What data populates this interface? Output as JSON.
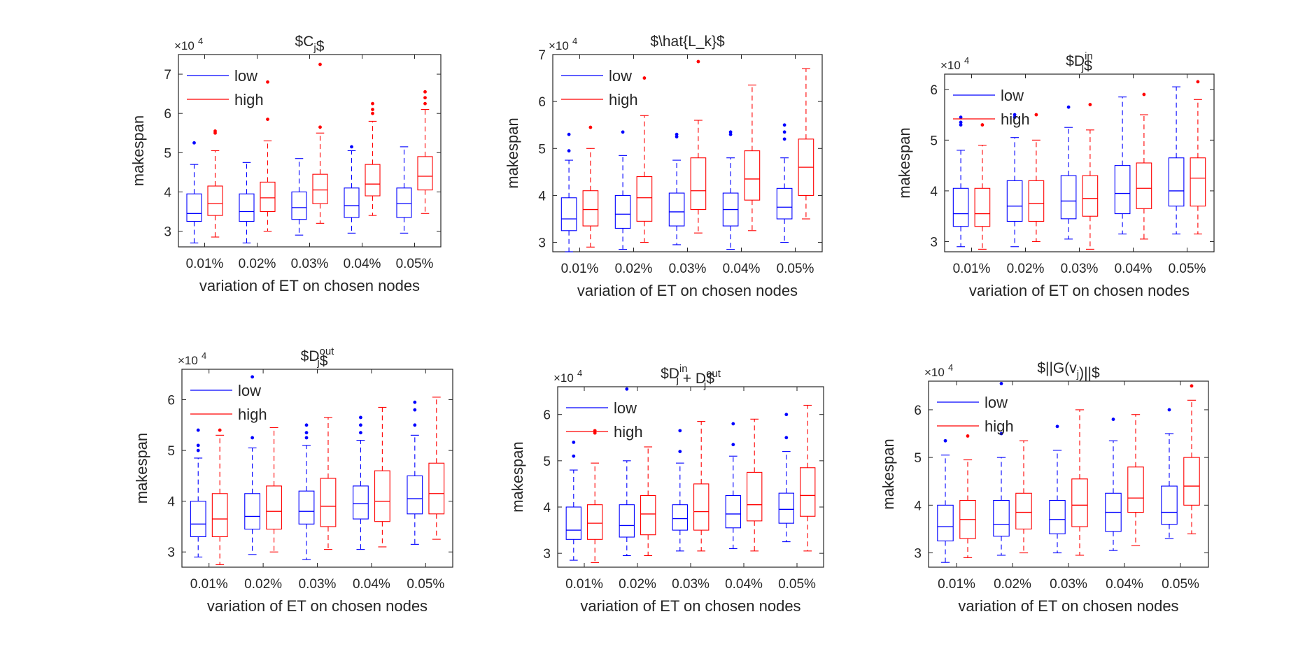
{
  "figure": {
    "colors": {
      "low": "#0000ff",
      "high": "#ff0000",
      "axis": "#262626"
    }
  },
  "chart_data": [
    {
      "type": "boxplot",
      "title": "$C_j$",
      "title_base": "$C",
      "title_sub": "j",
      "title_sup": "",
      "title_end": "$",
      "xlabel": "variation of ET on chosen nodes",
      "ylabel": "makespan",
      "exponent_label": "×10",
      "exponent_power": "4",
      "categories": [
        "0.01%",
        "0.02%",
        "0.03%",
        "0.04%",
        "0.05%"
      ],
      "ylim": [
        2.6,
        7.5
      ],
      "yticks": [
        3,
        4,
        5,
        6,
        7
      ],
      "legend": {
        "placement": "top-left",
        "entries": [
          "low",
          "high"
        ]
      },
      "series": [
        {
          "name": "low",
          "boxes": [
            {
              "min": 2.7,
              "q1": 3.25,
              "median": 3.45,
              "q3": 3.95,
              "max": 4.7,
              "outliers": [
                5.25
              ]
            },
            {
              "min": 2.7,
              "q1": 3.25,
              "median": 3.5,
              "q3": 3.95,
              "max": 4.75,
              "outliers": []
            },
            {
              "min": 2.9,
              "q1": 3.3,
              "median": 3.6,
              "q3": 4.0,
              "max": 4.85,
              "outliers": []
            },
            {
              "min": 2.95,
              "q1": 3.35,
              "median": 3.65,
              "q3": 4.1,
              "max": 5.05,
              "outliers": [
                5.15
              ]
            },
            {
              "min": 2.95,
              "q1": 3.35,
              "median": 3.7,
              "q3": 4.1,
              "max": 5.15,
              "outliers": []
            }
          ]
        },
        {
          "name": "high",
          "boxes": [
            {
              "min": 2.85,
              "q1": 3.4,
              "median": 3.7,
              "q3": 4.15,
              "max": 5.05,
              "outliers": [
                5.5,
                5.55
              ]
            },
            {
              "min": 3.0,
              "q1": 3.5,
              "median": 3.85,
              "q3": 4.25,
              "max": 5.3,
              "outliers": [
                5.85,
                6.8
              ]
            },
            {
              "min": 3.2,
              "q1": 3.7,
              "median": 4.05,
              "q3": 4.45,
              "max": 5.5,
              "outliers": [
                5.65,
                7.25
              ]
            },
            {
              "min": 3.4,
              "q1": 3.9,
              "median": 4.2,
              "q3": 4.7,
              "max": 5.8,
              "outliers": [
                6.0,
                6.1,
                6.25
              ]
            },
            {
              "min": 3.45,
              "q1": 4.05,
              "median": 4.4,
              "q3": 4.9,
              "max": 6.1,
              "outliers": [
                6.25,
                6.4,
                6.55
              ]
            }
          ]
        }
      ]
    },
    {
      "type": "boxplot",
      "title": "$\\hat{L_k}$",
      "title_base": "$\\hat{L_k}$",
      "title_sub": "",
      "title_sup": "",
      "title_end": "",
      "xlabel": "variation of ET on chosen nodes",
      "ylabel": "makespan",
      "exponent_label": "×10",
      "exponent_power": "4",
      "categories": [
        "0.01%",
        "0.02%",
        "0.03%",
        "0.04%",
        "0.05%"
      ],
      "ylim": [
        2.8,
        7.0
      ],
      "yticks": [
        3,
        4,
        5,
        6,
        7
      ],
      "legend": {
        "placement": "top-left",
        "entries": [
          "low",
          "high"
        ]
      },
      "series": [
        {
          "name": "low",
          "boxes": [
            {
              "min": 2.8,
              "q1": 3.25,
              "median": 3.5,
              "q3": 3.95,
              "max": 4.75,
              "outliers": [
                4.95,
                5.3
              ]
            },
            {
              "min": 2.85,
              "q1": 3.3,
              "median": 3.6,
              "q3": 4.0,
              "max": 4.85,
              "outliers": [
                5.35
              ]
            },
            {
              "min": 2.95,
              "q1": 3.35,
              "median": 3.65,
              "q3": 4.05,
              "max": 4.75,
              "outliers": [
                5.25,
                5.3
              ]
            },
            {
              "min": 2.85,
              "q1": 3.35,
              "median": 3.7,
              "q3": 4.05,
              "max": 4.8,
              "outliers": [
                5.3,
                5.35
              ]
            },
            {
              "min": 3.0,
              "q1": 3.5,
              "median": 3.75,
              "q3": 4.15,
              "max": 4.8,
              "outliers": [
                5.2,
                5.35,
                5.5
              ]
            }
          ]
        },
        {
          "name": "high",
          "boxes": [
            {
              "min": 2.9,
              "q1": 3.35,
              "median": 3.7,
              "q3": 4.1,
              "max": 5.0,
              "outliers": [
                5.45
              ]
            },
            {
              "min": 3.0,
              "q1": 3.45,
              "median": 3.95,
              "q3": 4.4,
              "max": 5.7,
              "outliers": [
                6.5
              ]
            },
            {
              "min": 3.2,
              "q1": 3.7,
              "median": 4.1,
              "q3": 4.8,
              "max": 5.6,
              "outliers": [
                6.85
              ]
            },
            {
              "min": 3.25,
              "q1": 3.9,
              "median": 4.35,
              "q3": 4.95,
              "max": 6.35,
              "outliers": []
            },
            {
              "min": 3.5,
              "q1": 4.0,
              "median": 4.6,
              "q3": 5.2,
              "max": 6.7,
              "outliers": []
            }
          ]
        }
      ]
    },
    {
      "type": "boxplot",
      "title": "$D_j^{in}$",
      "title_base": "$D",
      "title_sub": "j",
      "title_sup": "in",
      "title_end": "$",
      "xlabel": "variation of ET on chosen nodes",
      "ylabel": "makespan",
      "exponent_label": "×10",
      "exponent_power": "4",
      "categories": [
        "0.01%",
        "0.02%",
        "0.03%",
        "0.04%",
        "0.05%"
      ],
      "ylim": [
        2.8,
        6.3
      ],
      "yticks": [
        3,
        4,
        5,
        6
      ],
      "legend": {
        "placement": "top-left",
        "entries": [
          "low",
          "high"
        ]
      },
      "series": [
        {
          "name": "low",
          "boxes": [
            {
              "min": 2.9,
              "q1": 3.3,
              "median": 3.55,
              "q3": 4.05,
              "max": 4.8,
              "outliers": [
                5.3,
                5.35,
                5.45
              ]
            },
            {
              "min": 2.9,
              "q1": 3.4,
              "median": 3.7,
              "q3": 4.2,
              "max": 5.05,
              "outliers": [
                5.45,
                5.5
              ]
            },
            {
              "min": 3.05,
              "q1": 3.45,
              "median": 3.8,
              "q3": 4.3,
              "max": 5.25,
              "outliers": [
                5.65
              ]
            },
            {
              "min": 3.15,
              "q1": 3.55,
              "median": 3.95,
              "q3": 4.5,
              "max": 5.85,
              "outliers": []
            },
            {
              "min": 3.15,
              "q1": 3.7,
              "median": 4.0,
              "q3": 4.65,
              "max": 6.05,
              "outliers": []
            }
          ]
        },
        {
          "name": "high",
          "boxes": [
            {
              "min": 2.85,
              "q1": 3.3,
              "median": 3.55,
              "q3": 4.05,
              "max": 4.9,
              "outliers": [
                5.3
              ]
            },
            {
              "min": 3.0,
              "q1": 3.4,
              "median": 3.75,
              "q3": 4.2,
              "max": 5.0,
              "outliers": [
                5.5
              ]
            },
            {
              "min": 2.85,
              "q1": 3.5,
              "median": 3.85,
              "q3": 4.3,
              "max": 5.2,
              "outliers": [
                5.7
              ]
            },
            {
              "min": 3.05,
              "q1": 3.65,
              "median": 4.05,
              "q3": 4.55,
              "max": 5.5,
              "outliers": [
                5.9
              ]
            },
            {
              "min": 3.15,
              "q1": 3.7,
              "median": 4.25,
              "q3": 4.65,
              "max": 5.8,
              "outliers": [
                6.15
              ]
            }
          ]
        }
      ]
    },
    {
      "type": "boxplot",
      "title": "$D_j^{out}$",
      "title_base": "$D",
      "title_sub": "j",
      "title_sup": "out",
      "title_end": "$",
      "xlabel": "variation of ET on chosen nodes",
      "ylabel": "makespan",
      "exponent_label": "×10",
      "exponent_power": "4",
      "categories": [
        "0.01%",
        "0.02%",
        "0.03%",
        "0.04%",
        "0.05%"
      ],
      "ylim": [
        2.7,
        6.6
      ],
      "yticks": [
        3,
        4,
        5,
        6
      ],
      "legend": {
        "placement": "top-left",
        "entries": [
          "low",
          "high"
        ]
      },
      "series": [
        {
          "name": "low",
          "boxes": [
            {
              "min": 2.9,
              "q1": 3.3,
              "median": 3.55,
              "q3": 4.0,
              "max": 4.85,
              "outliers": [
                5.0,
                5.1,
                5.4
              ]
            },
            {
              "min": 2.95,
              "q1": 3.45,
              "median": 3.7,
              "q3": 4.15,
              "max": 5.05,
              "outliers": [
                5.25,
                6.45
              ]
            },
            {
              "min": 2.85,
              "q1": 3.55,
              "median": 3.8,
              "q3": 4.2,
              "max": 5.1,
              "outliers": [
                5.25,
                5.35,
                5.5
              ]
            },
            {
              "min": 3.05,
              "q1": 3.65,
              "median": 3.95,
              "q3": 4.3,
              "max": 5.2,
              "outliers": [
                5.35,
                5.5,
                5.65
              ]
            },
            {
              "min": 3.15,
              "q1": 3.75,
              "median": 4.05,
              "q3": 4.5,
              "max": 5.3,
              "outliers": [
                5.5,
                5.8,
                5.95
              ]
            }
          ]
        },
        {
          "name": "high",
          "boxes": [
            {
              "min": 2.75,
              "q1": 3.3,
              "median": 3.65,
              "q3": 4.15,
              "max": 5.3,
              "outliers": [
                5.4
              ]
            },
            {
              "min": 3.0,
              "q1": 3.45,
              "median": 3.8,
              "q3": 4.3,
              "max": 5.45,
              "outliers": []
            },
            {
              "min": 3.05,
              "q1": 3.5,
              "median": 3.9,
              "q3": 4.45,
              "max": 5.65,
              "outliers": []
            },
            {
              "min": 3.1,
              "q1": 3.6,
              "median": 4.0,
              "q3": 4.6,
              "max": 5.85,
              "outliers": []
            },
            {
              "min": 3.25,
              "q1": 3.75,
              "median": 4.15,
              "q3": 4.75,
              "max": 6.05,
              "outliers": []
            }
          ]
        }
      ]
    },
    {
      "type": "boxplot",
      "title": "$D_j^{in} + D_j^{out}$",
      "title_base": "$D",
      "title_sub": "j",
      "title_sup": "in",
      "title_end": " + D",
      "title_sub2": "j",
      "title_sup2": "out",
      "title_end2": "$",
      "xlabel": "variation of ET on chosen nodes",
      "ylabel": "makespan",
      "exponent_label": "×10",
      "exponent_power": "4",
      "categories": [
        "0.01%",
        "0.02%",
        "0.03%",
        "0.04%",
        "0.05%"
      ],
      "ylim": [
        2.7,
        6.6
      ],
      "yticks": [
        3,
        4,
        5,
        6
      ],
      "legend": {
        "placement": "top-left",
        "entries": [
          "low",
          "high"
        ]
      },
      "series": [
        {
          "name": "low",
          "boxes": [
            {
              "min": 2.85,
              "q1": 3.3,
              "median": 3.5,
              "q3": 4.0,
              "max": 4.8,
              "outliers": [
                5.1,
                5.4
              ]
            },
            {
              "min": 2.95,
              "q1": 3.35,
              "median": 3.6,
              "q3": 4.05,
              "max": 5.0,
              "outliers": [
                6.55
              ]
            },
            {
              "min": 3.05,
              "q1": 3.5,
              "median": 3.75,
              "q3": 4.05,
              "max": 4.95,
              "outliers": [
                5.2,
                5.65
              ]
            },
            {
              "min": 3.1,
              "q1": 3.55,
              "median": 3.85,
              "q3": 4.25,
              "max": 5.1,
              "outliers": [
                5.35,
                5.8
              ]
            },
            {
              "min": 3.25,
              "q1": 3.65,
              "median": 3.95,
              "q3": 4.3,
              "max": 5.2,
              "outliers": [
                5.5,
                6.0
              ]
            }
          ]
        },
        {
          "name": "high",
          "boxes": [
            {
              "min": 2.8,
              "q1": 3.3,
              "median": 3.65,
              "q3": 4.05,
              "max": 4.95,
              "outliers": [
                5.6,
                5.65
              ]
            },
            {
              "min": 2.95,
              "q1": 3.4,
              "median": 3.85,
              "q3": 4.25,
              "max": 5.3,
              "outliers": []
            },
            {
              "min": 3.05,
              "q1": 3.5,
              "median": 3.9,
              "q3": 4.5,
              "max": 5.85,
              "outliers": []
            },
            {
              "min": 3.05,
              "q1": 3.7,
              "median": 4.05,
              "q3": 4.75,
              "max": 5.9,
              "outliers": []
            },
            {
              "min": 3.05,
              "q1": 3.8,
              "median": 4.25,
              "q3": 4.85,
              "max": 6.2,
              "outliers": []
            }
          ]
        }
      ]
    },
    {
      "type": "boxplot",
      "title": "$||G(v_j)||$",
      "title_base": "$||G(v",
      "title_sub": "j",
      "title_sup": "",
      "title_end": ")||$",
      "xlabel": "variation of ET on chosen nodes",
      "ylabel": "makespan",
      "exponent_label": "×10",
      "exponent_power": "4",
      "categories": [
        "0.01%",
        "0.02%",
        "0.03%",
        "0.04%",
        "0.05%"
      ],
      "ylim": [
        2.7,
        6.6
      ],
      "yticks": [
        3,
        4,
        5,
        6
      ],
      "legend": {
        "placement": "top-left",
        "entries": [
          "low",
          "high"
        ]
      },
      "series": [
        {
          "name": "low",
          "boxes": [
            {
              "min": 2.8,
              "q1": 3.25,
              "median": 3.55,
              "q3": 4.0,
              "max": 5.05,
              "outliers": [
                5.35
              ]
            },
            {
              "min": 2.95,
              "q1": 3.35,
              "median": 3.6,
              "q3": 4.1,
              "max": 5.0,
              "outliers": [
                5.5,
                6.55
              ]
            },
            {
              "min": 3.0,
              "q1": 3.4,
              "median": 3.7,
              "q3": 4.1,
              "max": 5.15,
              "outliers": [
                5.65
              ]
            },
            {
              "min": 3.05,
              "q1": 3.45,
              "median": 3.85,
              "q3": 4.25,
              "max": 5.35,
              "outliers": [
                5.8
              ]
            },
            {
              "min": 3.3,
              "q1": 3.6,
              "median": 3.85,
              "q3": 4.4,
              "max": 5.5,
              "outliers": [
                6.0
              ]
            }
          ]
        },
        {
          "name": "high",
          "boxes": [
            {
              "min": 2.9,
              "q1": 3.3,
              "median": 3.7,
              "q3": 4.1,
              "max": 4.95,
              "outliers": [
                5.45
              ]
            },
            {
              "min": 3.0,
              "q1": 3.5,
              "median": 3.85,
              "q3": 4.25,
              "max": 5.35,
              "outliers": []
            },
            {
              "min": 2.95,
              "q1": 3.55,
              "median": 4.0,
              "q3": 4.55,
              "max": 6.0,
              "outliers": []
            },
            {
              "min": 3.15,
              "q1": 3.85,
              "median": 4.15,
              "q3": 4.8,
              "max": 5.9,
              "outliers": []
            },
            {
              "min": 3.4,
              "q1": 4.0,
              "median": 4.4,
              "q3": 5.0,
              "max": 6.2,
              "outliers": [
                6.5
              ]
            }
          ]
        }
      ]
    }
  ]
}
